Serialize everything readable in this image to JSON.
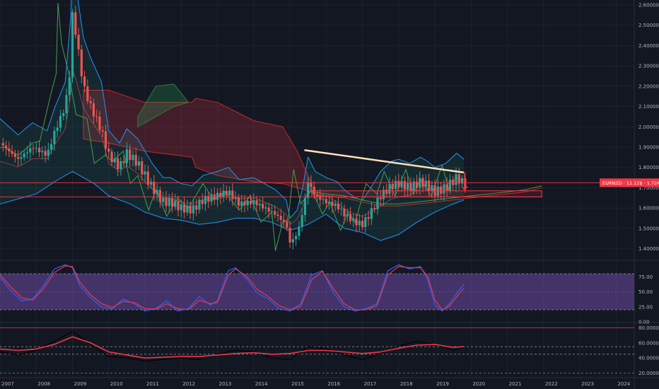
{
  "chart_data": [
    {
      "type": "candlestick",
      "pane": "price",
      "x_labels": [
        "2007",
        "2008",
        "2009",
        "2010",
        "2011",
        "2012",
        "2013",
        "2014",
        "2015",
        "2016",
        "2017",
        "2018",
        "2019",
        "2020",
        "2021",
        "2022",
        "2023",
        "2024"
      ],
      "x_range": [
        2007.0,
        2024.5
      ],
      "y_ticks": [
        "1.40000",
        "1.50000",
        "1.60000",
        "1.70000",
        "1.80000",
        "1.90000",
        "2.00000",
        "2.10000",
        "2.20000",
        "2.30000",
        "2.40000",
        "2.50000",
        "2.60000"
      ],
      "ylim": [
        1.35,
        2.61
      ],
      "price_label": "EURNZD · 11.12$ · 1.72469",
      "last_price": 1.72469,
      "horizontal_levels": [
        1.72469,
        1.655
      ],
      "trendline": {
        "x": [
          2015.4,
          2019.8
        ],
        "y": [
          1.885,
          1.775
        ]
      },
      "close_series": {
        "x": [
          2007.0,
          2007.5,
          2007.9,
          2008.3,
          2008.5,
          2008.8,
          2008.95,
          2009.0,
          2009.1,
          2009.3,
          2009.5,
          2009.8,
          2010.0,
          2010.3,
          2010.5,
          2010.8,
          2011.0,
          2011.2,
          2011.5,
          2011.7,
          2012.0,
          2012.3,
          2012.6,
          2013.0,
          2013.3,
          2013.6,
          2014.0,
          2014.3,
          2014.6,
          2014.9,
          2015.0,
          2015.2,
          2015.35,
          2015.5,
          2015.7,
          2016.0,
          2016.3,
          2016.5,
          2016.8,
          2017.0,
          2017.2,
          2017.5,
          2017.8,
          2018.0,
          2018.3,
          2018.6,
          2018.8,
          2019.0,
          2019.3,
          2019.6,
          2019.8
        ],
        "y": [
          1.92,
          1.84,
          1.9,
          1.86,
          1.97,
          2.1,
          2.3,
          2.55,
          2.45,
          2.2,
          2.1,
          1.98,
          1.86,
          1.8,
          1.87,
          1.82,
          1.76,
          1.7,
          1.63,
          1.63,
          1.6,
          1.59,
          1.64,
          1.66,
          1.68,
          1.62,
          1.63,
          1.6,
          1.57,
          1.52,
          1.43,
          1.47,
          1.58,
          1.73,
          1.66,
          1.63,
          1.61,
          1.57,
          1.53,
          1.52,
          1.57,
          1.66,
          1.71,
          1.72,
          1.7,
          1.73,
          1.71,
          1.68,
          1.7,
          1.75,
          1.72
        ]
      },
      "lower_band": {
        "x": [
          2007.0,
          2008.0,
          2008.6,
          2009.0,
          2009.6,
          2010.0,
          2010.6,
          2011.0,
          2011.5,
          2012.0,
          2012.5,
          2013.0,
          2013.5,
          2014.0,
          2014.5,
          2015.0,
          2015.5,
          2016.0,
          2016.5,
          2017.0,
          2017.5,
          2018.0,
          2018.5,
          2019.0,
          2019.5,
          2019.8
        ],
        "y": [
          1.62,
          1.67,
          1.74,
          1.78,
          1.72,
          1.66,
          1.62,
          1.58,
          1.55,
          1.54,
          1.52,
          1.53,
          1.55,
          1.55,
          1.53,
          1.49,
          1.52,
          1.57,
          1.5,
          1.48,
          1.44,
          1.47,
          1.53,
          1.58,
          1.62,
          1.64
        ]
      },
      "cloud_support": {
        "x": [
          2015.6,
          2016.0,
          2016.5,
          2017.0,
          2017.5,
          2018.0,
          2018.5,
          2019.0,
          2019.5,
          2020.0,
          2020.5,
          2021.0,
          2021.5,
          2021.95
        ],
        "y": [
          1.68,
          1.67,
          1.66,
          1.64,
          1.62,
          1.62,
          1.63,
          1.64,
          1.65,
          1.66,
          1.67,
          1.68,
          1.69,
          1.71
        ]
      }
    },
    {
      "type": "line",
      "pane": "oscillator",
      "y_ticks": [
        "0.00",
        "25.00",
        "50.00",
        "75.00"
      ],
      "ylim": [
        0,
        100
      ],
      "band": [
        20,
        80
      ],
      "series": [
        {
          "color": "#2962ff",
          "x": [
            2007.0,
            2007.3,
            2007.6,
            2007.9,
            2008.2,
            2008.5,
            2008.8,
            2009.0,
            2009.2,
            2009.5,
            2009.8,
            2010.1,
            2010.4,
            2010.7,
            2011.0,
            2011.3,
            2011.6,
            2011.9,
            2012.2,
            2012.5,
            2012.8,
            2013.0,
            2013.3,
            2013.5,
            2013.8,
            2014.1,
            2014.4,
            2014.7,
            2015.0,
            2015.3,
            2015.6,
            2015.9,
            2016.2,
            2016.5,
            2016.8,
            2017.1,
            2017.4,
            2017.7,
            2018.0,
            2018.3,
            2018.6,
            2018.8,
            2019.0,
            2019.2,
            2019.4,
            2019.6,
            2019.8
          ],
          "y": [
            74,
            52,
            35,
            38,
            60,
            88,
            95,
            90,
            60,
            40,
            25,
            22,
            38,
            30,
            18,
            22,
            35,
            18,
            22,
            42,
            28,
            35,
            85,
            90,
            72,
            48,
            38,
            22,
            18,
            30,
            78,
            85,
            48,
            25,
            18,
            22,
            30,
            85,
            95,
            88,
            92,
            70,
            28,
            18,
            30,
            48,
            62
          ]
        },
        {
          "color": "#f23645",
          "x": [
            2007.0,
            2007.3,
            2007.6,
            2007.9,
            2008.2,
            2008.5,
            2008.8,
            2009.0,
            2009.2,
            2009.5,
            2009.8,
            2010.1,
            2010.4,
            2010.7,
            2011.0,
            2011.3,
            2011.6,
            2011.9,
            2012.2,
            2012.5,
            2012.8,
            2013.0,
            2013.3,
            2013.5,
            2013.8,
            2014.1,
            2014.4,
            2014.7,
            2015.0,
            2015.3,
            2015.6,
            2015.9,
            2016.2,
            2016.5,
            2016.8,
            2017.1,
            2017.4,
            2017.7,
            2018.0,
            2018.3,
            2018.6,
            2018.8,
            2019.0,
            2019.2,
            2019.4,
            2019.6,
            2019.8
          ],
          "y": [
            78,
            58,
            40,
            36,
            55,
            82,
            93,
            92,
            66,
            45,
            30,
            24,
            34,
            32,
            22,
            21,
            30,
            22,
            20,
            36,
            30,
            32,
            78,
            88,
            76,
            54,
            42,
            27,
            20,
            26,
            70,
            84,
            55,
            30,
            20,
            20,
            27,
            78,
            92,
            90,
            90,
            76,
            36,
            20,
            26,
            42,
            56
          ]
        }
      ]
    },
    {
      "type": "line",
      "pane": "lower",
      "y_ticks": [
        "20.00000",
        "40.00000",
        "60.00000",
        "80.00000"
      ],
      "ylim": [
        15,
        85
      ],
      "series": [
        {
          "color": "#f23645",
          "x": [
            2007.0,
            2007.5,
            2008.0,
            2008.5,
            2009.0,
            2009.5,
            2010.0,
            2010.5,
            2011.0,
            2011.5,
            2012.0,
            2012.5,
            2013.0,
            2013.5,
            2014.0,
            2014.5,
            2015.0,
            2015.5,
            2016.0,
            2016.5,
            2017.0,
            2017.5,
            2018.0,
            2018.5,
            2019.0,
            2019.5,
            2019.8
          ],
          "y": [
            52,
            50,
            52,
            58,
            68,
            60,
            48,
            44,
            40,
            41,
            42,
            42,
            44,
            46,
            47,
            45,
            46,
            50,
            50,
            48,
            46,
            48,
            53,
            57,
            58,
            54,
            55
          ]
        },
        {
          "color": "#000000",
          "x": [
            2007.0,
            2007.5,
            2008.0,
            2008.5,
            2009.0,
            2009.5,
            2010.0,
            2010.5,
            2011.0,
            2011.5,
            2012.0,
            2012.5,
            2013.0,
            2013.5,
            2014.0,
            2014.5,
            2015.0,
            2015.5,
            2016.0,
            2016.5,
            2017.0,
            2017.5,
            2018.0,
            2018.5,
            2019.0,
            2019.5,
            2019.8
          ],
          "y": [
            48,
            44,
            50,
            62,
            75,
            58,
            42,
            40,
            36,
            38,
            40,
            38,
            45,
            50,
            48,
            40,
            38,
            55,
            52,
            44,
            38,
            46,
            56,
            62,
            58,
            50,
            54
          ]
        }
      ]
    }
  ]
}
